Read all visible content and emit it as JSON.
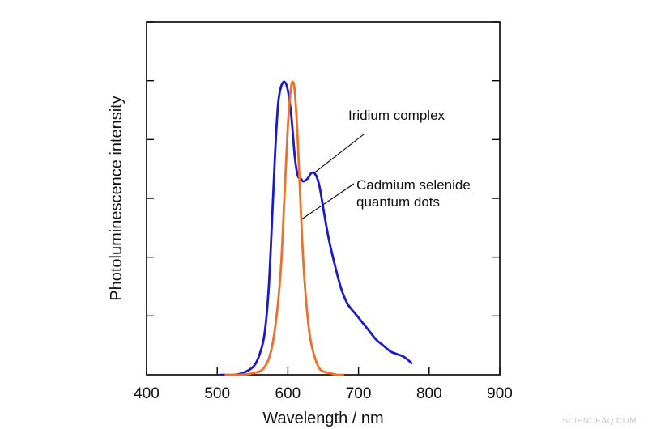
{
  "chart_data": {
    "type": "line",
    "title": "",
    "xlabel": "Wavelength / nm",
    "ylabel": "Photoluminescence intensity",
    "xlim": [
      400,
      900
    ],
    "ylim": [
      0,
      1
    ],
    "xticks": [
      "400",
      "500",
      "600",
      "700",
      "800",
      "900"
    ],
    "y_tick_count": 6,
    "y_tick_labels": "none",
    "grid": false,
    "legend": "none",
    "series": [
      {
        "name": "Iridium complex",
        "color": "#1a1acc",
        "x": [
          505,
          525,
          540,
          552,
          560,
          567,
          573,
          578,
          582,
          586,
          590,
          595,
          600,
          605,
          610,
          614,
          618,
          622,
          628,
          634,
          640,
          645,
          650,
          655,
          660,
          668,
          676,
          685,
          695,
          705,
          715,
          725,
          735,
          745,
          755,
          765,
          775
        ],
        "values": [
          0.0,
          0.0,
          0.01,
          0.03,
          0.07,
          0.14,
          0.3,
          0.55,
          0.76,
          0.92,
          0.98,
          1.0,
          0.97,
          0.88,
          0.74,
          0.68,
          0.67,
          0.66,
          0.67,
          0.69,
          0.68,
          0.64,
          0.57,
          0.5,
          0.44,
          0.36,
          0.29,
          0.24,
          0.21,
          0.18,
          0.15,
          0.12,
          0.1,
          0.08,
          0.07,
          0.06,
          0.04
        ]
      },
      {
        "name": "Cadmium selenide quantum dots",
        "color": "#f07028",
        "x": [
          512,
          530,
          550,
          565,
          575,
          583,
          590,
          595,
          600,
          604,
          607,
          610,
          614,
          618,
          622,
          627,
          632,
          638,
          645,
          652,
          660,
          670,
          678
        ],
        "values": [
          0.0,
          0.0,
          0.005,
          0.02,
          0.07,
          0.18,
          0.36,
          0.6,
          0.85,
          0.97,
          1.0,
          0.96,
          0.8,
          0.58,
          0.38,
          0.22,
          0.12,
          0.06,
          0.02,
          0.01,
          0.005,
          0.0,
          0.0
        ]
      }
    ],
    "annotations": [
      {
        "label": "Iridium complex",
        "target_series": 0,
        "target_x": 636
      },
      {
        "label": "Cadmium selenide quantum dots",
        "lines": [
          "Cadmium selenide",
          "quantum dots"
        ],
        "target_series": 1,
        "target_x": 619
      }
    ]
  },
  "watermark": "SCIENCEAQ.COM"
}
